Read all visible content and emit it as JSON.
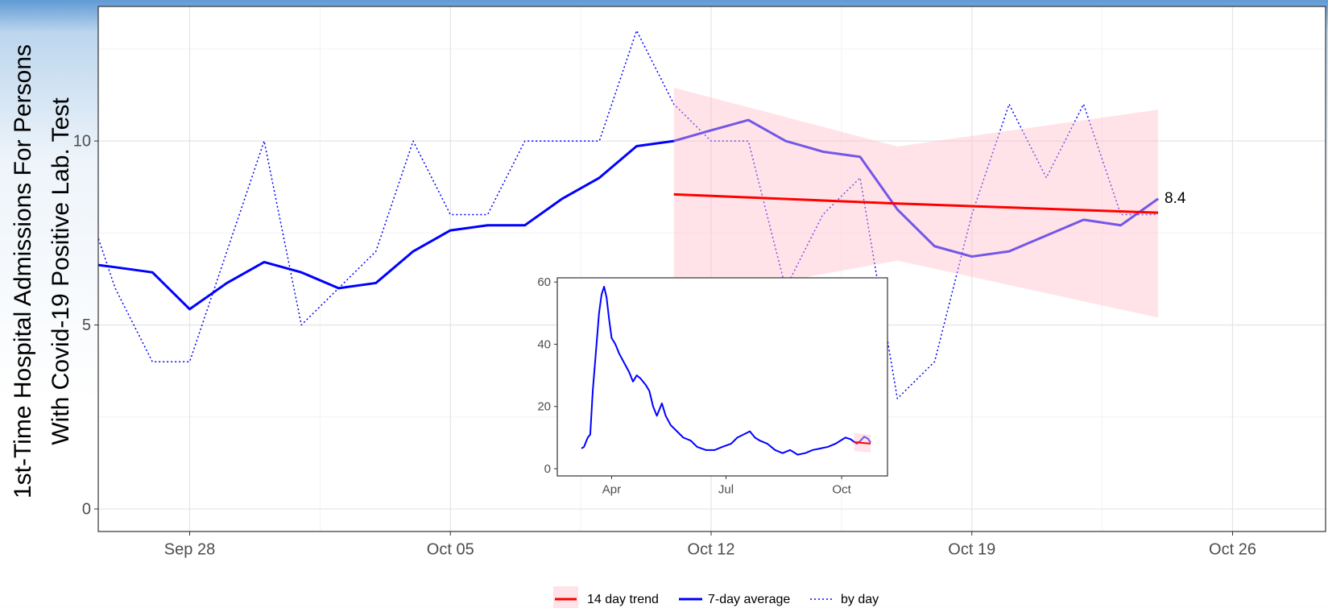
{
  "chart_data": [
    {
      "type": "line",
      "ylabel": [
        "1st-Time Hospital Admissions For Persons",
        "With Covid-19 Positive Lab. Test"
      ],
      "x": [
        "Sep 25",
        "Sep 26",
        "Sep 27",
        "Sep 28",
        "Sep 29",
        "Sep 30",
        "Oct 01",
        "Oct 02",
        "Oct 03",
        "Oct 04",
        "Oct 05",
        "Oct 06",
        "Oct 07",
        "Oct 08",
        "Oct 09",
        "Oct 10",
        "Oct 11",
        "Oct 12",
        "Oct 13",
        "Oct 14",
        "Oct 15",
        "Oct 16",
        "Oct 17",
        "Oct 18",
        "Oct 19",
        "Oct 20",
        "Oct 21",
        "Oct 22",
        "Oct 23",
        "Oct 24"
      ],
      "xlim": [
        "Sep 26",
        "Oct 28"
      ],
      "xticks": [
        "Sep 28",
        "Oct 05",
        "Oct 12",
        "Oct 19",
        "Oct 26"
      ],
      "ylim": [
        0,
        13
      ],
      "yticks": [
        0,
        5,
        10
      ],
      "grid": true,
      "series": [
        {
          "name": "7-day average",
          "color": "#0000ff",
          "width": 3,
          "dash": "solid",
          "values": [
            6.7,
            6.57,
            6.43,
            5.43,
            6.14,
            6.71,
            6.43,
            6.0,
            6.14,
            7.0,
            7.57,
            7.71,
            7.71,
            8.43,
            9.0,
            9.86,
            10.0,
            10.29,
            10.57,
            10.0,
            9.71,
            9.57,
            8.14,
            7.14,
            6.86,
            7.0,
            7.43,
            7.86,
            7.71,
            8.43
          ],
          "value_labels": [
            null,
            null,
            null,
            null,
            null,
            null,
            null,
            null,
            null,
            null,
            null,
            null,
            null,
            null,
            null,
            null,
            null,
            null,
            null,
            null,
            null,
            null,
            null,
            null,
            null,
            null,
            null,
            null,
            null,
            "8.4"
          ]
        },
        {
          "name": "by day",
          "color": "#0000ff",
          "width": 1.5,
          "dash": "dotted",
          "values": [
            9,
            6,
            4,
            4,
            7,
            10,
            5,
            6,
            7,
            10,
            8,
            8,
            10,
            10,
            10,
            13,
            11,
            10,
            10,
            6,
            8,
            9,
            3,
            4,
            8,
            11,
            9,
            11,
            8,
            8
          ]
        }
      ],
      "trend": {
        "name": "14 day trend",
        "color": "#ff0000",
        "band_color": "#ffc0cb",
        "band_opacity": 0.45,
        "x": [
          "Oct 11",
          "Oct 17",
          "Oct 24"
        ],
        "values": [
          8.55,
          8.3,
          8.05
        ],
        "lower": [
          5.65,
          6.75,
          5.2
        ],
        "upper": [
          11.45,
          9.85,
          10.85
        ]
      },
      "legend": "bottom"
    },
    {
      "type": "line",
      "x": [
        -24,
        -22,
        -19,
        -17,
        -15,
        -12,
        -10,
        -8,
        -6,
        -4,
        -2,
        0,
        3,
        6,
        10,
        14,
        17,
        20,
        23,
        27,
        30,
        33,
        36,
        40,
        43,
        47,
        52,
        57,
        63,
        68,
        75,
        82,
        88,
        95,
        100,
        105,
        110,
        114,
        118,
        124,
        130,
        136,
        142,
        148,
        154,
        160,
        166,
        172,
        178,
        182,
        186,
        190,
        195,
        198,
        201,
        204,
        206
      ],
      "xlim": [
        -24,
        206
      ],
      "xticks": [
        {
          "value": 0,
          "label": "Apr"
        },
        {
          "value": 91,
          "label": "Jul"
        },
        {
          "value": 183,
          "label": "Oct"
        }
      ],
      "ylim": [
        0,
        58.5
      ],
      "yticks": [
        0,
        20,
        40,
        60
      ],
      "grid": false,
      "series": [
        {
          "color": "#0000ff",
          "width": 2,
          "dash": "solid",
          "values": [
            6.5,
            7,
            10,
            11,
            25,
            40,
            50,
            56,
            58.5,
            55,
            48,
            42,
            40,
            37,
            34,
            31,
            28,
            30,
            29,
            27,
            25,
            20,
            17,
            21,
            17,
            14,
            12,
            10,
            9,
            7,
            6,
            6,
            7,
            8,
            10,
            11,
            12,
            10,
            9,
            8,
            6,
            5,
            6,
            4.5,
            5,
            6,
            6.5,
            7,
            8,
            9,
            10,
            9.5,
            8,
            9,
            10.3,
            9.6,
            8.4
          ]
        }
      ],
      "trend": {
        "color": "#ff0000",
        "band_color": "#ffc0cb",
        "band_opacity": 0.45,
        "x": [
          193,
          206
        ],
        "values": [
          8.55,
          8.05
        ],
        "lower": [
          5.65,
          5.2
        ],
        "upper": [
          11.45,
          10.85
        ]
      }
    }
  ]
}
